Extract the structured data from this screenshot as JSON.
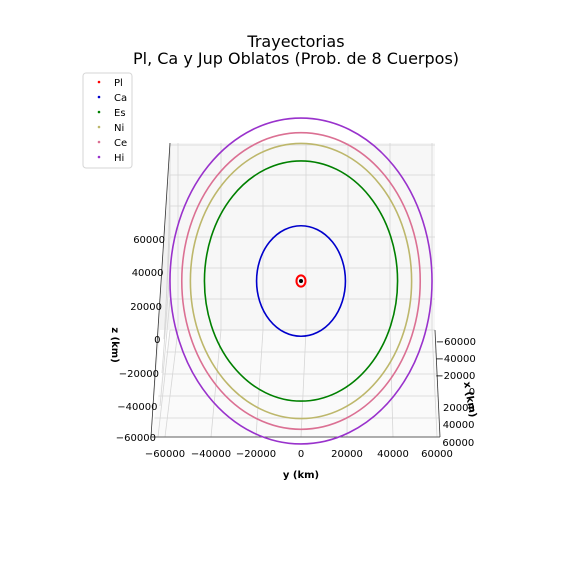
{
  "chart_data": {
    "type": "line",
    "title_line1": "Trayectorias",
    "title_line2": "Pl, Ca y Jup Oblatos (Prob. de 8 Cuerpos)",
    "xlabel": "y (km)",
    "ylabel": "z (km)",
    "zlabel": "x (km)",
    "xlim": [
      -60000,
      60000
    ],
    "ylim": [
      -60000,
      60000
    ],
    "bottom_ticks": [
      "−60000",
      "−40000",
      "−20000",
      "0",
      "20000",
      "40000",
      "60000"
    ],
    "left_ticks": [
      "−60000",
      "−40000",
      "−20000",
      "0",
      "20000",
      "40000",
      "60000"
    ],
    "right_ticks": [
      "−60000",
      "−40000",
      "−20000",
      "0",
      "20000",
      "40000",
      "60000"
    ],
    "legend_position": "upper-left",
    "grid": true,
    "series": [
      {
        "name": "Pl",
        "color": "#ff0000",
        "radius": 2000
      },
      {
        "name": "Ca",
        "color": "#0000cc",
        "radius": 19600
      },
      {
        "name": "Es",
        "color": "#008000",
        "radius": 42600
      },
      {
        "name": "Ni",
        "color": "#bdb76b",
        "radius": 48800
      },
      {
        "name": "Ce",
        "color": "#db7093",
        "radius": 52600
      },
      {
        "name": "Hi",
        "color": "#9932cc",
        "radius": 57800
      }
    ]
  }
}
